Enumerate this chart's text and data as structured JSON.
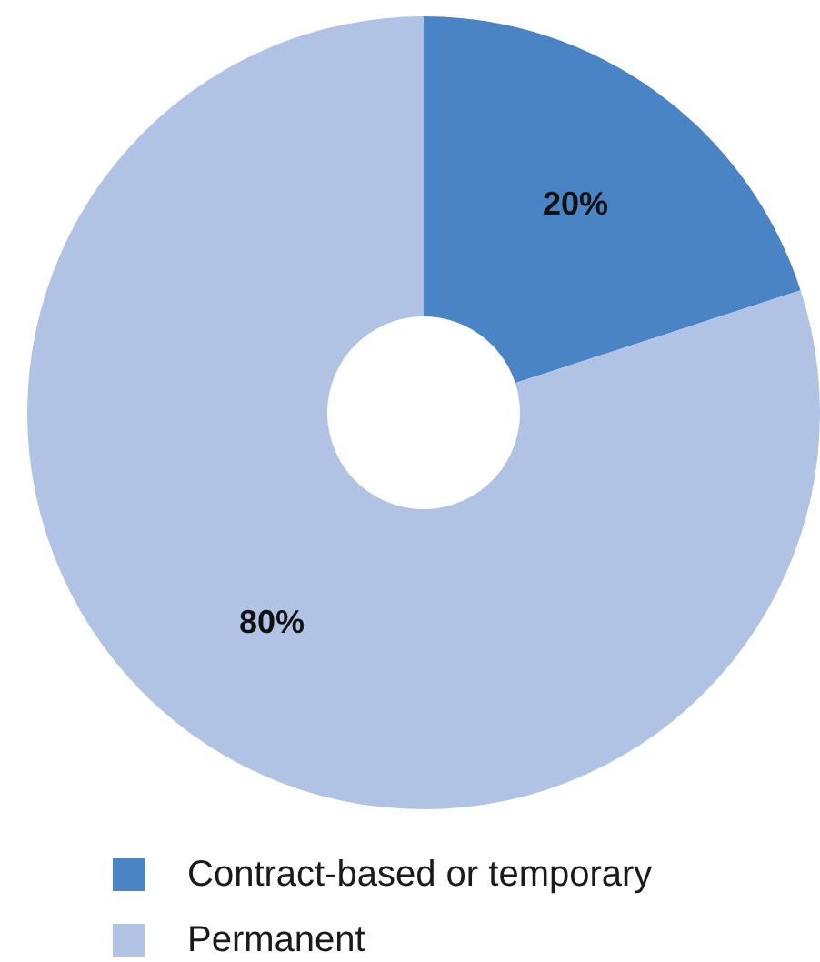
{
  "chart_data": {
    "type": "donut",
    "categories": [
      "Contract-based or temporary",
      "Permanent"
    ],
    "values": [
      20,
      80
    ],
    "colors": [
      "#4a84c4",
      "#b0c3e4"
    ],
    "value_labels": [
      "20%",
      "80%"
    ],
    "legend": "bottom"
  }
}
